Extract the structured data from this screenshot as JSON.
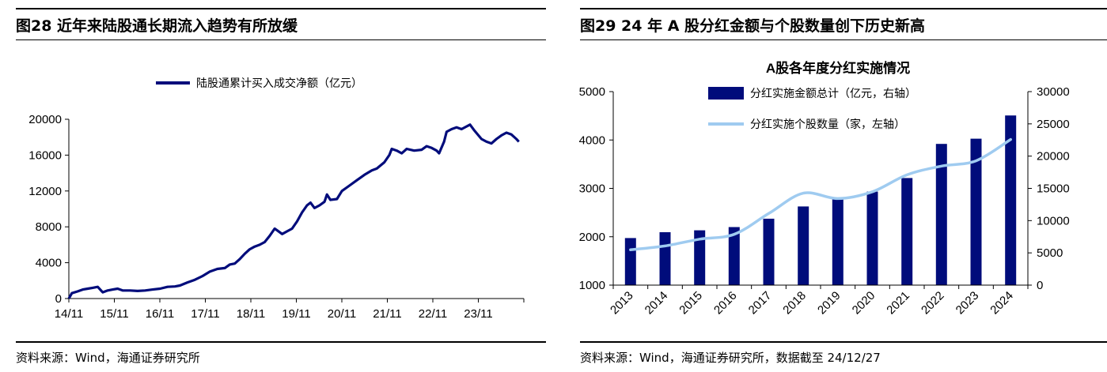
{
  "left": {
    "figure_title": "图28 近年来陆股通长期流入趋势有所放缓",
    "source": "资料来源：Wind，海通证券研究所"
  },
  "right": {
    "figure_title": "图29 24 年 A 股分红金额与个股数量创下历史新高",
    "source": "资料来源：Wind，海通证券研究所，数据截至 24/12/27"
  },
  "colors": {
    "navy": "#000c7b",
    "light_blue": "#9fcbf0"
  },
  "chart_data": [
    {
      "type": "line",
      "title": "",
      "xlabel": "",
      "ylabel": "",
      "x_tick_labels": [
        "14/11",
        "15/11",
        "16/11",
        "17/11",
        "18/11",
        "19/11",
        "20/11",
        "21/11",
        "22/11",
        "23/11"
      ],
      "ylim": [
        0,
        20000
      ],
      "y_ticks": [
        0,
        4000,
        8000,
        12000,
        16000,
        20000
      ],
      "legend_position": "top-center",
      "grid": false,
      "series": [
        {
          "name": "陆股通累计买入成交净额（亿元）",
          "color": "#000c7b",
          "points": [
            [
              2014.87,
              0
            ],
            [
              2014.93,
              600
            ],
            [
              2015.05,
              800
            ],
            [
              2015.15,
              1000
            ],
            [
              2015.25,
              1100
            ],
            [
              2015.35,
              1200
            ],
            [
              2015.45,
              1300
            ],
            [
              2015.55,
              700
            ],
            [
              2015.65,
              900
            ],
            [
              2015.75,
              1000
            ],
            [
              2015.85,
              1100
            ],
            [
              2015.95,
              900
            ],
            [
              2016.1,
              900
            ],
            [
              2016.25,
              850
            ],
            [
              2016.4,
              900
            ],
            [
              2016.55,
              1000
            ],
            [
              2016.7,
              1100
            ],
            [
              2016.85,
              1300
            ],
            [
              2017.0,
              1350
            ],
            [
              2017.1,
              1450
            ],
            [
              2017.25,
              1800
            ],
            [
              2017.4,
              2100
            ],
            [
              2017.55,
              2500
            ],
            [
              2017.7,
              3000
            ],
            [
              2017.85,
              3300
            ],
            [
              2018.0,
              3400
            ],
            [
              2018.1,
              3800
            ],
            [
              2018.2,
              3900
            ],
            [
              2018.3,
              4400
            ],
            [
              2018.4,
              5000
            ],
            [
              2018.5,
              5500
            ],
            [
              2018.6,
              5800
            ],
            [
              2018.7,
              6000
            ],
            [
              2018.8,
              6300
            ],
            [
              2018.9,
              7000
            ],
            [
              2019.0,
              7800
            ],
            [
              2019.05,
              7600
            ],
            [
              2019.15,
              7200
            ],
            [
              2019.25,
              7500
            ],
            [
              2019.35,
              7800
            ],
            [
              2019.45,
              8600
            ],
            [
              2019.55,
              9600
            ],
            [
              2019.65,
              10400
            ],
            [
              2019.72,
              10700
            ],
            [
              2019.8,
              10100
            ],
            [
              2019.9,
              10400
            ],
            [
              2020.0,
              10800
            ],
            [
              2020.05,
              11600
            ],
            [
              2020.12,
              11000
            ],
            [
              2020.25,
              11100
            ],
            [
              2020.35,
              12000
            ],
            [
              2020.5,
              12600
            ],
            [
              2020.65,
              13200
            ],
            [
              2020.8,
              13800
            ],
            [
              2020.95,
              14300
            ],
            [
              2021.05,
              14500
            ],
            [
              2021.2,
              15200
            ],
            [
              2021.3,
              16000
            ],
            [
              2021.35,
              16700
            ],
            [
              2021.45,
              16500
            ],
            [
              2021.55,
              16200
            ],
            [
              2021.65,
              16700
            ],
            [
              2021.8,
              16500
            ],
            [
              2021.95,
              16600
            ],
            [
              2022.05,
              17000
            ],
            [
              2022.15,
              16800
            ],
            [
              2022.25,
              16500
            ],
            [
              2022.3,
              16200
            ],
            [
              2022.4,
              17500
            ],
            [
              2022.45,
              18600
            ],
            [
              2022.55,
              18900
            ],
            [
              2022.65,
              19100
            ],
            [
              2022.75,
              18900
            ],
            [
              2022.85,
              19200
            ],
            [
              2022.92,
              19400
            ],
            [
              2023.0,
              18800
            ],
            [
              2023.15,
              17800
            ],
            [
              2023.25,
              17500
            ],
            [
              2023.35,
              17300
            ],
            [
              2023.45,
              17800
            ],
            [
              2023.55,
              18200
            ],
            [
              2023.65,
              18500
            ],
            [
              2023.75,
              18300
            ],
            [
              2023.85,
              17800
            ],
            [
              2023.9,
              17500
            ]
          ]
        }
      ]
    },
    {
      "type": "bar",
      "title": "A股各年度分红实施情况",
      "xlabel": "",
      "ylabel": "",
      "categories": [
        "2013",
        "2014",
        "2015",
        "2016",
        "2017",
        "2018",
        "2019",
        "2020",
        "2021",
        "2022",
        "2023",
        "2024"
      ],
      "left_axis": {
        "ylim": [
          1000,
          5000
        ],
        "ticks": [
          1000,
          2000,
          3000,
          4000,
          5000
        ]
      },
      "right_axis": {
        "ylim": [
          0,
          30000
        ],
        "ticks": [
          0,
          5000,
          10000,
          15000,
          20000,
          25000,
          30000
        ]
      },
      "legend_position": "top-center",
      "grid": false,
      "series": [
        {
          "name": "分红实施金额总计（亿元，右轴）",
          "type": "bar",
          "axis": "right",
          "color": "#000c7b",
          "values": [
            7300,
            8200,
            8500,
            9000,
            10300,
            12200,
            13300,
            14500,
            16600,
            21900,
            22700,
            26300
          ]
        },
        {
          "name": "分红实施个股数量（家，左轴）",
          "type": "line",
          "axis": "left",
          "color": "#9fcbf0",
          "values": [
            1730,
            1810,
            1950,
            2050,
            2480,
            2900,
            2790,
            2930,
            3280,
            3460,
            3570,
            4010
          ]
        }
      ]
    }
  ]
}
